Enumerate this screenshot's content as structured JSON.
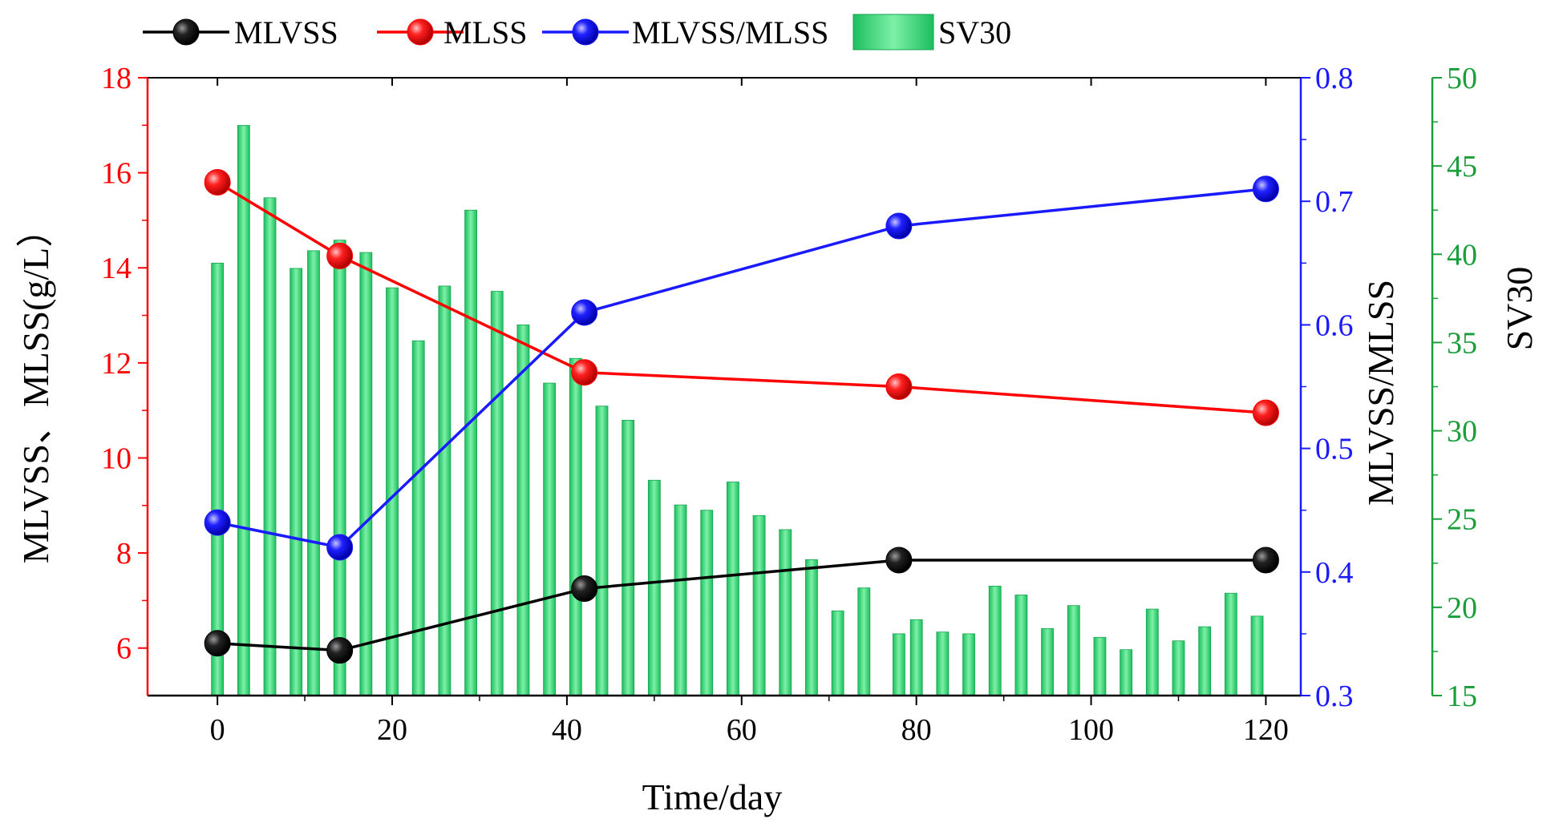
{
  "chart_data": {
    "type": "combo-bar-line",
    "xlabel": "Time/day",
    "xlim": [
      -8,
      124
    ],
    "xticks": [
      0,
      20,
      40,
      60,
      80,
      100,
      120
    ],
    "axes": {
      "left": {
        "label": "MLVSS、MLSS(g/L）",
        "range": [
          5,
          18
        ],
        "ticks": [
          6,
          8,
          10,
          12,
          14,
          16,
          18
        ],
        "color": "#ff0000"
      },
      "right1": {
        "label": "MLVSS/MLSS",
        "range": [
          0.3,
          0.8
        ],
        "ticks": [
          0.3,
          0.4,
          0.5,
          0.6,
          0.7,
          0.8
        ],
        "color": "#1a1aff"
      },
      "right2": {
        "label": "SV30",
        "range": [
          15,
          50
        ],
        "ticks": [
          15,
          20,
          25,
          30,
          35,
          40,
          45,
          50
        ],
        "color": "#1a9e3a"
      }
    },
    "legend": {
      "position": "top",
      "items": [
        "MLVSS",
        "MLSS",
        "MLVSS/MLSS",
        "SV30"
      ]
    },
    "series": [
      {
        "name": "MLVSS",
        "axis": "left",
        "color": "#000000",
        "x": [
          0,
          14,
          42,
          78,
          120
        ],
        "values": [
          6.1,
          5.95,
          7.25,
          7.85,
          7.85
        ]
      },
      {
        "name": "MLSS",
        "axis": "left",
        "color": "#ff0000",
        "x": [
          0,
          14,
          42,
          78,
          120
        ],
        "values": [
          15.8,
          14.25,
          11.8,
          11.5,
          10.95
        ]
      },
      {
        "name": "MLVSS/MLSS",
        "axis": "right1",
        "color": "#1a1aff",
        "x": [
          0,
          14,
          42,
          78,
          120
        ],
        "values": [
          0.44,
          0.42,
          0.61,
          0.68,
          0.71
        ]
      },
      {
        "name": "SV30",
        "axis": "right2",
        "type": "bar",
        "color": "#22c96b",
        "x": [
          0,
          3,
          6,
          9,
          11,
          14,
          17,
          20,
          23,
          26,
          29,
          32,
          35,
          38,
          41,
          44,
          47,
          50,
          53,
          56,
          59,
          62,
          65,
          68,
          71,
          74,
          78,
          80,
          83,
          86,
          89,
          92,
          95,
          98,
          101,
          104,
          107,
          110,
          113,
          116,
          119
        ],
        "values": [
          39.5,
          47.3,
          43.2,
          39.2,
          40.2,
          40.8,
          40.1,
          38.1,
          35.1,
          38.2,
          42.5,
          37.9,
          36.0,
          32.7,
          34.1,
          31.4,
          30.6,
          27.2,
          25.8,
          25.5,
          27.1,
          25.2,
          24.4,
          22.7,
          19.8,
          21.1,
          18.5,
          19.3,
          18.6,
          18.5,
          21.2,
          20.7,
          18.8,
          20.1,
          18.3,
          17.6,
          19.9,
          18.1,
          18.9,
          20.8,
          19.5
        ]
      }
    ]
  }
}
